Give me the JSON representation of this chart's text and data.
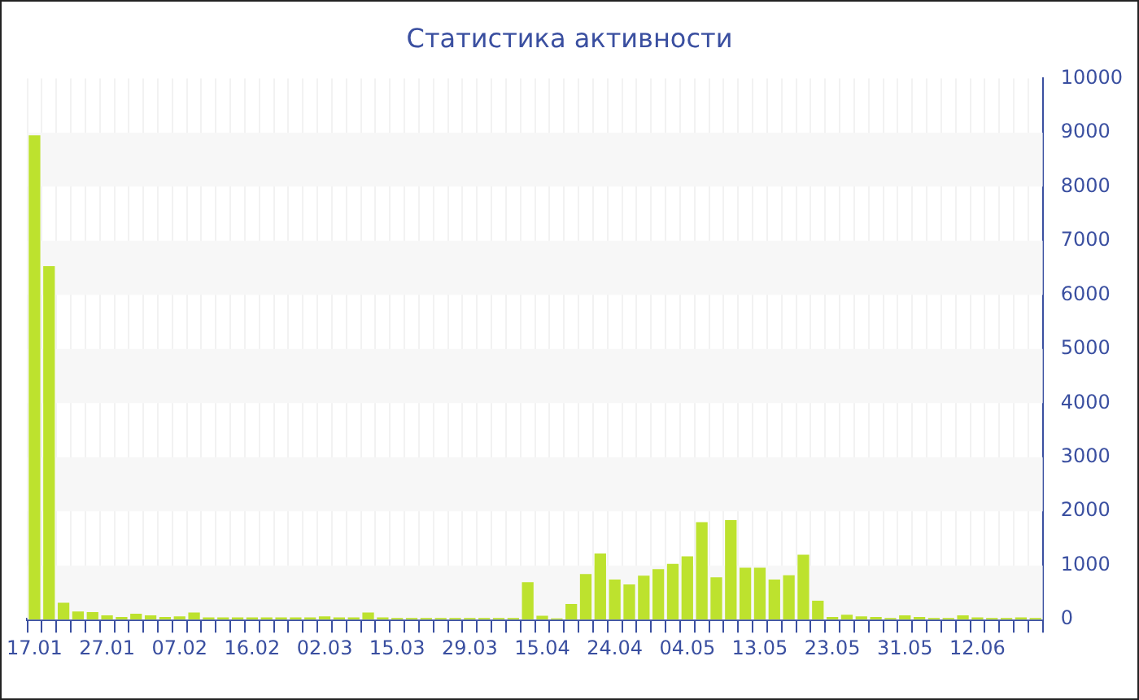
{
  "chart_data": {
    "type": "bar",
    "title": "Статистика активности",
    "categories": [
      "17.01",
      null,
      null,
      null,
      null,
      "27.01",
      null,
      null,
      null,
      null,
      "07.02",
      null,
      null,
      null,
      null,
      "16.02",
      null,
      null,
      null,
      null,
      "02.03",
      null,
      null,
      null,
      null,
      "15.03",
      null,
      null,
      null,
      null,
      "29.03",
      null,
      null,
      null,
      null,
      "15.04",
      null,
      null,
      null,
      null,
      "24.04",
      null,
      null,
      null,
      null,
      "04.05",
      null,
      null,
      null,
      null,
      "13.05",
      null,
      null,
      null,
      null,
      "23.05",
      null,
      null,
      null,
      null,
      "31.05",
      null,
      null,
      null,
      null,
      "12.06",
      null,
      null,
      null,
      null
    ],
    "values": [
      8950,
      6530,
      310,
      150,
      140,
      80,
      50,
      110,
      80,
      50,
      60,
      130,
      40,
      40,
      40,
      40,
      40,
      40,
      40,
      40,
      60,
      40,
      40,
      130,
      40,
      30,
      30,
      30,
      30,
      30,
      30,
      30,
      30,
      30,
      690,
      70,
      20,
      290,
      840,
      1220,
      740,
      650,
      810,
      930,
      1030,
      1170,
      1800,
      780,
      1840,
      960,
      960,
      740,
      820,
      1200,
      350,
      50,
      90,
      60,
      50,
      30,
      80,
      50,
      30,
      30,
      80,
      40,
      30,
      30,
      40,
      30
    ],
    "color": "#bde22e",
    "ylim": [
      0,
      10000
    ],
    "yticks": [
      0,
      1000,
      2000,
      3000,
      4000,
      5000,
      6000,
      7000,
      8000,
      9000,
      10000
    ],
    "grid": true
  }
}
